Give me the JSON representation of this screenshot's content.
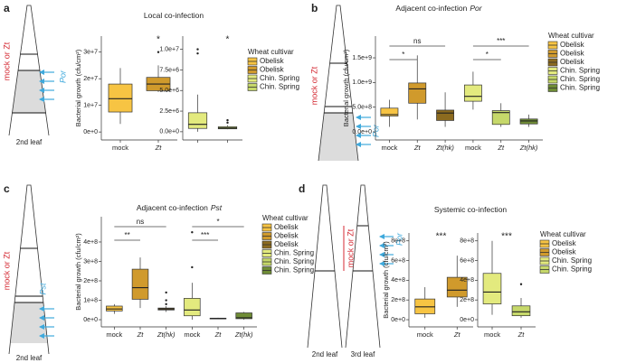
{
  "panels": [
    {
      "letter": "a",
      "treatment": "mock or Zt",
      "pathogen": "Por",
      "leaf_labels": [
        "2nd leaf"
      ]
    },
    {
      "letter": "b",
      "treatment": "mock or Zt",
      "pathogen": "Por",
      "leaf_labels": []
    },
    {
      "letter": "c",
      "treatment": "mock or Zt",
      "pathogen": "Pst",
      "leaf_labels": [
        "2nd leaf"
      ]
    },
    {
      "letter": "d",
      "treatment": "mock or Zt",
      "pathogen": "Por",
      "leaf_labels": [
        "2nd leaf",
        "3rd leaf"
      ]
    }
  ],
  "chart_data": [
    {
      "type": "box",
      "title": "Local co-infection",
      "ylabel": "Bacterial growth (cfu/cm²)",
      "categories": [
        "mock",
        "Zt"
      ],
      "italic_categories": [
        1
      ],
      "colors": [
        "#f7c443",
        "#d09a2c"
      ],
      "boxes": [
        {
          "min": 3000000,
          "q1": 7500000,
          "median": 12500000,
          "q3": 18000000,
          "max": 24000000,
          "outliers": []
        },
        {
          "min": 15000000,
          "q1": 15500000,
          "median": 18000000,
          "q3": 20500000,
          "max": 25000000,
          "outliers": [
            30000000
          ]
        }
      ],
      "ylim": [
        -3000000,
        36000000
      ],
      "yticks": [
        {
          "value": 0,
          "label": "0e+0"
        },
        {
          "value": 10000000,
          "label": "1e+7"
        },
        {
          "value": 20000000,
          "label": "2e+7"
        },
        {
          "value": 30000000,
          "label": "3e+7"
        }
      ],
      "annotations": [
        {
          "label": "*",
          "category": 1
        }
      ]
    },
    {
      "type": "box",
      "categories": [
        null,
        null
      ],
      "italic_categories": [],
      "colors": [
        "#e3ea7e",
        "#c6d86a"
      ],
      "boxes": [
        {
          "min": 0,
          "q1": 400000,
          "median": 900000,
          "q3": 2300000,
          "max": 4500000,
          "outliers": [
            9500000,
            10000000
          ]
        },
        {
          "min": 300000,
          "q1": 350000,
          "median": 450000,
          "q3": 600000,
          "max": 800000,
          "outliers": [
            1100000,
            1400000
          ]
        }
      ],
      "ylim": [
        -1000000,
        11600000
      ],
      "yticks": [
        {
          "value": 0,
          "label": "0.0e+0"
        },
        {
          "value": 2500000,
          "label": "2.5e+6"
        },
        {
          "value": 5000000,
          "label": "5.0e+6"
        },
        {
          "value": 7500000,
          "label": "7.5e+6"
        },
        {
          "value": 10000000,
          "label": "1.0e+7"
        }
      ],
      "annotations": [
        {
          "label": "*",
          "category": 1
        }
      ],
      "legend_title": "Wheat cultivar",
      "legend": [
        {
          "name": "Obelisk",
          "color": "#f7c443"
        },
        {
          "name": "Obelisk",
          "color": "#d09a2c"
        },
        {
          "name": "Chin. Spring",
          "color": "#e3ea7e"
        },
        {
          "name": "Chin. Spring",
          "color": "#c6d86a"
        }
      ]
    },
    {
      "type": "box",
      "title": "Adjacent co-infection",
      "title_italic": "Por",
      "ylabel": "Bacterial growth (cfu/cm²)",
      "categories": [
        "mock",
        "Zt",
        "Zt(hk)",
        "mock",
        "Zt",
        "Zt(hk)"
      ],
      "italic_categories": [
        1,
        2,
        4,
        5
      ],
      "colors": [
        "#f7c443",
        "#d09a2c",
        "#8c6b1f",
        "#e3ea7e",
        "#c6d86a",
        "#6f8c36"
      ],
      "boxes": [
        {
          "min": 100000000,
          "q1": 320000000,
          "median": 350000000,
          "q3": 480000000,
          "max": 650000000,
          "outliers": []
        },
        {
          "min": 250000000,
          "q1": 580000000,
          "median": 870000000,
          "q3": 990000000,
          "max": 1550000000,
          "outliers": []
        },
        {
          "min": 100000000,
          "q1": 230000000,
          "median": 380000000,
          "q3": 440000000,
          "max": 800000000,
          "outliers": []
        },
        {
          "min": 450000000,
          "q1": 620000000,
          "median": 720000000,
          "q3": 950000000,
          "max": 1220000000,
          "outliers": []
        },
        {
          "min": 100000000,
          "q1": 150000000,
          "median": 390000000,
          "q3": 430000000,
          "max": 580000000,
          "outliers": []
        },
        {
          "min": 100000000,
          "q1": 160000000,
          "median": 220000000,
          "q3": 260000000,
          "max": 350000000,
          "outliers": []
        }
      ],
      "ylim": [
        -165000000,
        1940000000
      ],
      "yticks": [
        {
          "value": 0,
          "label": "0.0e+0"
        },
        {
          "value": 500000000,
          "label": "5.0e+8"
        },
        {
          "value": 1000000000,
          "label": "1.0e+9"
        },
        {
          "value": 1500000000,
          "label": "1.5e+9"
        }
      ],
      "brackets": [
        {
          "from": 0,
          "to": 2,
          "label": "ns"
        },
        {
          "from": 0,
          "to": 1,
          "label": "*"
        },
        {
          "from": 3,
          "to": 5,
          "label": "***"
        },
        {
          "from": 3,
          "to": 4,
          "label": "*"
        }
      ],
      "legend_title": "Wheat cultivar",
      "legend": [
        {
          "name": "Obelisk",
          "color": "#f7c443"
        },
        {
          "name": "Obelisk",
          "color": "#d09a2c"
        },
        {
          "name": "Obelisk",
          "color": "#8c6b1f"
        },
        {
          "name": "Chin. Spring",
          "color": "#e3ea7e"
        },
        {
          "name": "Chin. Spring",
          "color": "#c6d86a"
        },
        {
          "name": "Chin. Spring",
          "color": "#6f8c36"
        }
      ]
    },
    {
      "type": "box",
      "title": "Adjacent co-infection",
      "title_italic": "Pst",
      "ylabel": "Bacterial growth (cfu/cm²)",
      "categories": [
        "mock",
        "Zt",
        "Zt(hk)",
        "mock",
        "Zt",
        "Zt(hk)"
      ],
      "italic_categories": [
        1,
        2,
        4,
        5
      ],
      "colors": [
        "#f7c443",
        "#d09a2c",
        "#8c6b1f",
        "#e3ea7e",
        "#c6d86a",
        "#6f8c36"
      ],
      "boxes": [
        {
          "min": 30000000,
          "q1": 45000000,
          "median": 55000000,
          "q3": 70000000,
          "max": 80000000,
          "outliers": []
        },
        {
          "min": 60000000,
          "q1": 105000000,
          "median": 165000000,
          "q3": 260000000,
          "max": 320000000,
          "outliers": []
        },
        {
          "min": 40000000,
          "q1": 50000000,
          "median": 55000000,
          "q3": 60000000,
          "max": 70000000,
          "outliers": [
            80000000,
            100000000,
            140000000
          ]
        },
        {
          "min": 0,
          "q1": 20000000,
          "median": 50000000,
          "q3": 110000000,
          "max": 190000000,
          "outliers": [
            270000000,
            450000000
          ]
        },
        {
          "min": 3000000,
          "q1": 4000000,
          "median": 6000000,
          "q3": 8000000,
          "max": 10000000,
          "outliers": []
        },
        {
          "min": 0,
          "q1": 5000000,
          "median": 10000000,
          "q3": 35000000,
          "max": 40000000,
          "outliers": []
        }
      ],
      "ylim": [
        -37000000,
        530000000
      ],
      "yticks": [
        {
          "value": 0,
          "label": "0e+0"
        },
        {
          "value": 100000000,
          "label": "1e+8"
        },
        {
          "value": 200000000,
          "label": "2e+8"
        },
        {
          "value": 300000000,
          "label": "3e+8"
        },
        {
          "value": 400000000,
          "label": "4e+8"
        }
      ],
      "brackets": [
        {
          "from": 0,
          "to": 2,
          "label": "ns"
        },
        {
          "from": 0,
          "to": 1,
          "label": "**"
        },
        {
          "from": 3,
          "to": 5,
          "label": "*"
        },
        {
          "from": 3,
          "to": 4,
          "label": "***"
        }
      ],
      "legend_title": "Wheat cultivar",
      "legend": [
        {
          "name": "Obelisk",
          "color": "#f7c443"
        },
        {
          "name": "Obelisk",
          "color": "#d09a2c"
        },
        {
          "name": "Obelisk",
          "color": "#8c6b1f"
        },
        {
          "name": "Chin. Spring",
          "color": "#e3ea7e"
        },
        {
          "name": "Chin. Spring",
          "color": "#c6d86a"
        },
        {
          "name": "Chin. Spring",
          "color": "#6f8c36"
        }
      ]
    },
    {
      "type": "box",
      "title": "Systemic co-infection",
      "ylabel": "Bacterial growth (cfu/cm²)",
      "categories": [
        "mock",
        "Zt"
      ],
      "italic_categories": [
        1
      ],
      "colors": [
        "#f7c443",
        "#d09a2c"
      ],
      "boxes": [
        {
          "min": 20000000,
          "q1": 60000000,
          "median": 130000000,
          "q3": 210000000,
          "max": 330000000,
          "outliers": []
        },
        {
          "min": 130000000,
          "q1": 230000000,
          "median": 300000000,
          "q3": 430000000,
          "max": 650000000,
          "outliers": []
        }
      ],
      "ylim": [
        -73000000,
        880000000
      ],
      "yticks": [
        {
          "value": 0,
          "label": "0e+0"
        },
        {
          "value": 200000000,
          "label": "2e+8"
        },
        {
          "value": 400000000,
          "label": "4e+8"
        },
        {
          "value": 600000000,
          "label": "6e+8"
        },
        {
          "value": 800000000,
          "label": "8e+8"
        }
      ],
      "annotations": [
        {
          "label": "***"
        }
      ]
    },
    {
      "type": "box",
      "categories": [
        "mock",
        "Zt"
      ],
      "italic_categories": [
        1
      ],
      "colors": [
        "#e3ea7e",
        "#c6d86a"
      ],
      "boxes": [
        {
          "min": 50000000,
          "q1": 160000000,
          "median": 280000000,
          "q3": 470000000,
          "max": 800000000,
          "outliers": []
        },
        {
          "min": 20000000,
          "q1": 40000000,
          "median": 80000000,
          "q3": 140000000,
          "max": 220000000,
          "outliers": [
            360000000
          ]
        }
      ],
      "ylim": [
        -73000000,
        880000000
      ],
      "yticks": [
        {
          "value": 0,
          "label": "0e+0"
        },
        {
          "value": 200000000,
          "label": "2e+8"
        },
        {
          "value": 400000000,
          "label": "4e+8"
        },
        {
          "value": 600000000,
          "label": "6e+8"
        },
        {
          "value": 800000000,
          "label": "8e+8"
        }
      ],
      "annotations": [
        {
          "label": "***"
        }
      ],
      "legend_title": "Wheat cultivar",
      "legend": [
        {
          "name": "Obelisk",
          "color": "#f7c443"
        },
        {
          "name": "Obelisk",
          "color": "#d09a2c"
        },
        {
          "name": "Chin. Spring",
          "color": "#e3ea7e"
        },
        {
          "name": "Chin. Spring",
          "color": "#c6d86a"
        }
      ]
    }
  ]
}
